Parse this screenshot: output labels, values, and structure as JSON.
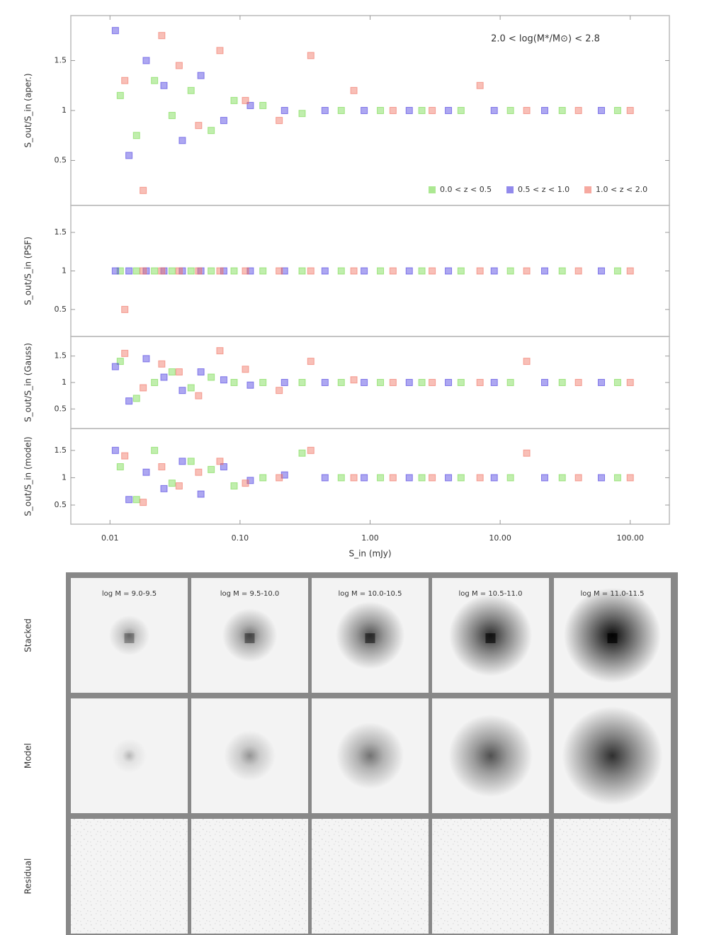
{
  "chart_data": [
    {
      "type": "scatter",
      "ylabel": "S_out/S_in (aper.)",
      "annotation": "2.0 < log(M*/M⊙) < 2.8",
      "legend": "lower right",
      "ylim": [
        0.05,
        1.95
      ],
      "yticks": [
        0.5,
        1,
        1.5
      ],
      "series": [
        {
          "name": "0.0 < z < 0.5",
          "color": "#74d94a",
          "x": [
            0.012,
            0.016,
            0.022,
            0.03,
            0.042,
            0.06,
            0.09,
            0.15,
            0.3,
            0.6,
            1.2,
            2.5,
            5,
            12,
            30,
            80
          ],
          "y": [
            1.15,
            0.75,
            1.3,
            0.95,
            1.2,
            0.8,
            1.1,
            1.05,
            0.97,
            1,
            1,
            1,
            1,
            1,
            1,
            1
          ]
        },
        {
          "name": "0.5 < z < 1.0",
          "color": "#4a3ce0",
          "x": [
            0.011,
            0.014,
            0.019,
            0.026,
            0.036,
            0.05,
            0.075,
            0.12,
            0.22,
            0.45,
            0.9,
            2,
            4,
            9,
            22,
            60
          ],
          "y": [
            1.8,
            0.55,
            1.5,
            1.25,
            0.7,
            1.35,
            0.9,
            1.05,
            1,
            1,
            1,
            1,
            1,
            1,
            1,
            1
          ]
        },
        {
          "name": "1.0 < z < 2.0",
          "color": "#f07060",
          "x": [
            0.013,
            0.018,
            0.025,
            0.034,
            0.048,
            0.07,
            0.11,
            0.2,
            0.35,
            0.75,
            1.5,
            3,
            7,
            16,
            40,
            100
          ],
          "y": [
            1.3,
            0.2,
            1.75,
            1.45,
            0.85,
            1.6,
            1.1,
            0.9,
            1.55,
            1.2,
            1,
            1,
            1.25,
            1,
            1,
            1
          ]
        }
      ]
    },
    {
      "type": "scatter",
      "ylabel": "S_out/S_in (PSF)",
      "ylim": [
        0.15,
        1.85
      ],
      "yticks": [
        0.5,
        1,
        1.5
      ],
      "series": [
        {
          "color": "#74d94a",
          "x": [
            0.012,
            0.016,
            0.022,
            0.03,
            0.042,
            0.06,
            0.09,
            0.15,
            0.3,
            0.6,
            1.2,
            2.5,
            5,
            12,
            30,
            80
          ],
          "y": [
            1,
            1,
            1,
            1,
            1,
            1,
            1,
            1,
            1,
            1,
            1,
            1,
            1,
            1,
            1,
            1
          ]
        },
        {
          "color": "#4a3ce0",
          "x": [
            0.011,
            0.014,
            0.019,
            0.026,
            0.036,
            0.05,
            0.075,
            0.12,
            0.22,
            0.45,
            0.9,
            2,
            4,
            9,
            22,
            60
          ],
          "y": [
            1,
            1,
            1,
            1,
            1,
            1,
            1,
            1,
            1,
            1,
            1,
            1,
            1,
            1,
            1,
            1
          ]
        },
        {
          "color": "#f07060",
          "x": [
            0.013,
            0.018,
            0.025,
            0.034,
            0.048,
            0.07,
            0.11,
            0.2,
            0.35,
            0.75,
            1.5,
            3,
            7,
            16,
            40,
            100
          ],
          "y": [
            0.5,
            1,
            1,
            1,
            1,
            1,
            1,
            1,
            1,
            1,
            1,
            1,
            1,
            1,
            1,
            1
          ]
        }
      ]
    },
    {
      "type": "scatter",
      "ylabel": "S_out/S_in (Gauss)",
      "ylim": [
        0.13,
        1.87
      ],
      "yticks": [
        0.5,
        1,
        1.5
      ],
      "series": [
        {
          "color": "#74d94a",
          "x": [
            0.012,
            0.016,
            0.022,
            0.03,
            0.042,
            0.06,
            0.09,
            0.15,
            0.3,
            0.6,
            1.2,
            2.5,
            5,
            12,
            30,
            80
          ],
          "y": [
            1.4,
            0.7,
            1,
            1.2,
            0.9,
            1.1,
            1,
            1,
            1,
            1,
            1,
            1,
            1,
            1,
            1,
            1
          ]
        },
        {
          "color": "#4a3ce0",
          "x": [
            0.011,
            0.014,
            0.019,
            0.026,
            0.036,
            0.05,
            0.075,
            0.12,
            0.22,
            0.45,
            0.9,
            2,
            4,
            9,
            22,
            60
          ],
          "y": [
            1.3,
            0.65,
            1.45,
            1.1,
            0.85,
            1.2,
            1.05,
            0.95,
            1,
            1,
            1,
            1,
            1,
            1,
            1,
            1
          ]
        },
        {
          "color": "#f07060",
          "x": [
            0.013,
            0.018,
            0.025,
            0.034,
            0.048,
            0.07,
            0.11,
            0.2,
            0.35,
            0.75,
            1.5,
            3,
            7,
            16,
            40,
            100
          ],
          "y": [
            1.55,
            0.9,
            1.35,
            1.2,
            0.75,
            1.6,
            1.25,
            0.85,
            1.4,
            1.05,
            1,
            1,
            1,
            1.4,
            1,
            1
          ]
        }
      ]
    },
    {
      "type": "scatter",
      "ylabel": "S_out/S_in (model)",
      "xlabel": "S_in (mJy)",
      "log": true,
      "xlim": [
        0.005,
        200
      ],
      "xticks": [
        {
          "value": 0.01,
          "label": "0.01"
        },
        {
          "value": 0.1,
          "label": "0.10"
        },
        {
          "value": 1,
          "label": "1.00"
        },
        {
          "value": 10,
          "label": "10.00"
        },
        {
          "value": 100,
          "label": "100.00"
        }
      ],
      "ylim": [
        0.15,
        1.9
      ],
      "yticks": [
        0.5,
        1,
        1.5
      ],
      "series": [
        {
          "color": "#74d94a",
          "x": [
            0.012,
            0.016,
            0.022,
            0.03,
            0.042,
            0.06,
            0.09,
            0.15,
            0.3,
            0.6,
            1.2,
            2.5,
            5,
            12,
            30,
            80
          ],
          "y": [
            1.2,
            0.6,
            1.5,
            0.9,
            1.3,
            1.15,
            0.85,
            1,
            1.45,
            1,
            1,
            1,
            1,
            1,
            1,
            1
          ]
        },
        {
          "color": "#4a3ce0",
          "x": [
            0.011,
            0.014,
            0.019,
            0.026,
            0.036,
            0.05,
            0.075,
            0.12,
            0.22,
            0.45,
            0.9,
            2,
            4,
            9,
            22,
            60
          ],
          "y": [
            1.5,
            0.6,
            1.1,
            0.8,
            1.3,
            0.7,
            1.2,
            0.95,
            1.05,
            1,
            1,
            1,
            1,
            1,
            1,
            1
          ]
        },
        {
          "color": "#f07060",
          "x": [
            0.013,
            0.018,
            0.025,
            0.034,
            0.048,
            0.07,
            0.11,
            0.2,
            0.35,
            0.75,
            1.5,
            3,
            7,
            16,
            40,
            100
          ],
          "y": [
            1.4,
            0.55,
            1.2,
            0.85,
            1.1,
            1.3,
            0.9,
            1,
            1.5,
            1,
            1,
            1,
            1,
            1.45,
            1,
            1
          ]
        }
      ]
    }
  ],
  "image_grid": {
    "row_labels": [
      "Stacked",
      "Model",
      "Residual"
    ],
    "column_titles": [
      "log M = 9.0-9.5",
      "log M = 9.5-10.0",
      "log M = 10.0-10.5",
      "log M = 10.5-11.0",
      "log M = 11.0-11.5"
    ]
  }
}
